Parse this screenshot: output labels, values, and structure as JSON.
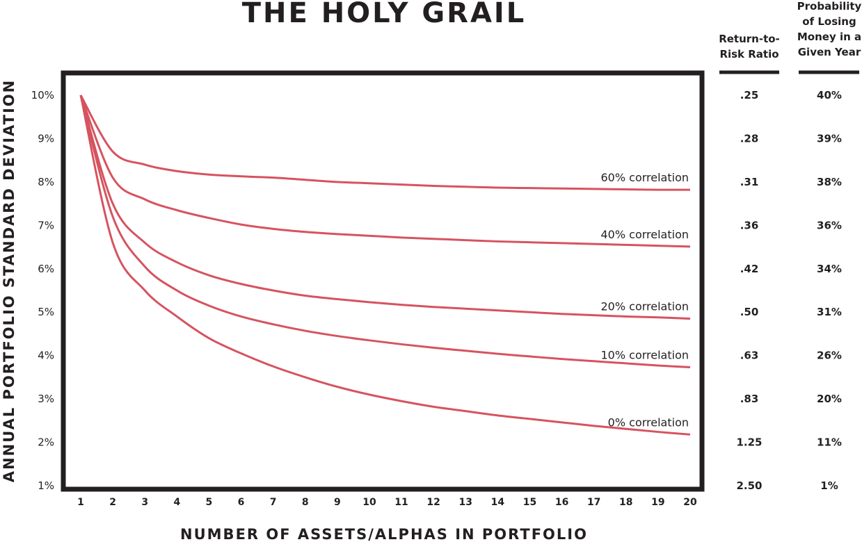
{
  "chart_data": {
    "type": "line",
    "title": "THE HOLY GRAIL",
    "xlabel": "NUMBER OF ASSETS/ALPHAS IN PORTFOLIO",
    "ylabel": "ANNUAL PORTFOLIO STANDARD DEVIATION",
    "x": [
      1,
      2,
      3,
      4,
      5,
      6,
      7,
      8,
      9,
      10,
      11,
      12,
      13,
      14,
      15,
      16,
      17,
      18,
      19,
      20
    ],
    "xlim": [
      0.5,
      20.5
    ],
    "ylim": [
      1,
      10.6
    ],
    "y_tick_labels": [
      "10%",
      "9%",
      "8%",
      "7%",
      "6%",
      "5%",
      "4%",
      "3%",
      "2%",
      "1%"
    ],
    "y_tick_values": [
      10,
      9,
      8,
      7,
      6,
      5,
      4,
      3,
      2,
      1
    ],
    "grid": false,
    "line_color": "#d6535f",
    "series": [
      {
        "name": "60% correlation",
        "values": [
          10.0,
          8.7,
          8.4,
          8.25,
          8.17,
          8.13,
          8.1,
          8.05,
          8.0,
          7.97,
          7.94,
          7.91,
          7.89,
          7.87,
          7.86,
          7.85,
          7.84,
          7.83,
          7.82,
          7.82
        ]
      },
      {
        "name": "40% correlation",
        "values": [
          10.0,
          8.1,
          7.6,
          7.35,
          7.17,
          7.02,
          6.92,
          6.85,
          6.8,
          6.76,
          6.72,
          6.69,
          6.66,
          6.63,
          6.61,
          6.59,
          6.57,
          6.55,
          6.53,
          6.51
        ]
      },
      {
        "name": "20% correlation",
        "values": [
          10.0,
          7.5,
          6.6,
          6.15,
          5.85,
          5.65,
          5.5,
          5.38,
          5.3,
          5.23,
          5.17,
          5.12,
          5.08,
          5.04,
          5.0,
          4.96,
          4.93,
          4.9,
          4.88,
          4.85
        ]
      },
      {
        "name": "10% correlation",
        "values": [
          10.0,
          7.2,
          6.05,
          5.5,
          5.15,
          4.9,
          4.72,
          4.57,
          4.45,
          4.35,
          4.26,
          4.18,
          4.11,
          4.04,
          3.98,
          3.92,
          3.87,
          3.82,
          3.77,
          3.73
        ]
      },
      {
        "name": "0% correlation",
        "values": [
          10.0,
          6.6,
          5.5,
          4.9,
          4.4,
          4.05,
          3.75,
          3.5,
          3.28,
          3.1,
          2.95,
          2.82,
          2.72,
          2.62,
          2.54,
          2.46,
          2.38,
          2.31,
          2.24,
          2.18
        ]
      }
    ],
    "side_table": {
      "col1_header": [
        "Return-to-",
        "Risk Ratio"
      ],
      "col2_header": [
        "Probability",
        "of Losing",
        "Money in a",
        "Given Year"
      ],
      "rows": [
        {
          "ratio": ".25",
          "prob": "40%"
        },
        {
          "ratio": ".28",
          "prob": "39%"
        },
        {
          "ratio": ".31",
          "prob": "38%"
        },
        {
          "ratio": ".36",
          "prob": "36%"
        },
        {
          "ratio": ".42",
          "prob": "34%"
        },
        {
          "ratio": ".50",
          "prob": "31%"
        },
        {
          "ratio": ".63",
          "prob": "26%"
        },
        {
          "ratio": ".83",
          "prob": "20%"
        },
        {
          "ratio": "1.25",
          "prob": "11%"
        },
        {
          "ratio": "2.50",
          "prob": "1%"
        }
      ]
    }
  }
}
